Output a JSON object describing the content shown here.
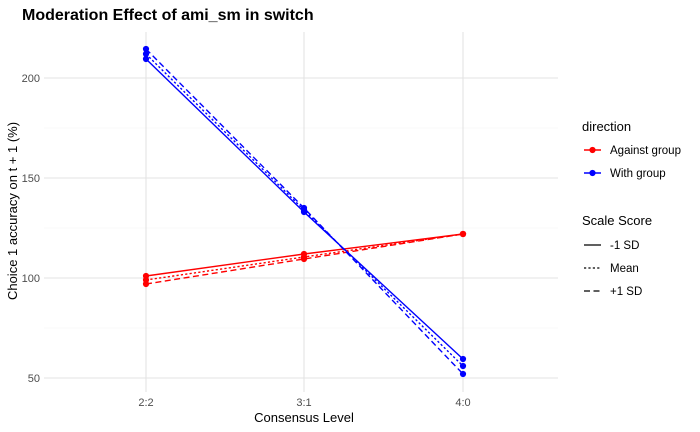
{
  "chart_data": {
    "type": "line",
    "title": "Moderation Effect of ami_sm in switch",
    "xlabel": "Consensus Level",
    "ylabel": "Choice 1 accuracy on t + 1 (%)",
    "categories": [
      "2:2",
      "3:1",
      "4:0"
    ],
    "ylim": [
      43,
      223
    ],
    "yticks": [
      50,
      100,
      150,
      200
    ],
    "grid": true,
    "legend_position": "right",
    "color_legend": {
      "title": "direction",
      "entries": [
        {
          "label": "Against group",
          "color": "#ff0000"
        },
        {
          "label": "With group",
          "color": "#0000ff"
        }
      ]
    },
    "linetype_legend": {
      "title": "Scale Score",
      "entries": [
        {
          "label": "-1 SD",
          "dash": "solid"
        },
        {
          "label": "Mean",
          "dash": "dotted"
        },
        {
          "label": "+1 SD",
          "dash": "dashed"
        }
      ]
    },
    "series": [
      {
        "direction": "Against group",
        "scale": "-1 SD",
        "color": "#ff0000",
        "dash": "solid",
        "values": [
          101,
          112,
          122
        ]
      },
      {
        "direction": "Against group",
        "scale": "Mean",
        "color": "#ff0000",
        "dash": "dotted",
        "values": [
          99,
          110.5,
          122
        ]
      },
      {
        "direction": "Against group",
        "scale": "+1 SD",
        "color": "#ff0000",
        "dash": "dashed",
        "values": [
          97,
          109.5,
          122
        ]
      },
      {
        "direction": "With group",
        "scale": "-1 SD",
        "color": "#0000ff",
        "dash": "solid",
        "values": [
          209.5,
          133,
          59.5
        ]
      },
      {
        "direction": "With group",
        "scale": "Mean",
        "color": "#0000ff",
        "dash": "dotted",
        "values": [
          212,
          134,
          56
        ]
      },
      {
        "direction": "With group",
        "scale": "+1 SD",
        "color": "#0000ff",
        "dash": "dashed",
        "values": [
          214.5,
          135,
          52
        ]
      }
    ]
  }
}
